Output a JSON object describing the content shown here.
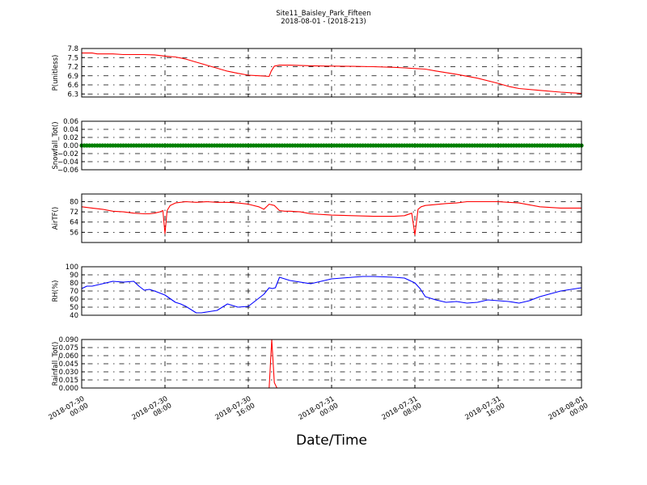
{
  "figure": {
    "title_line1": "Site11_Baisley_Park_Fifteen",
    "title_line2": "2018-08-01 - (2018-213)",
    "xlabel": "Date/Time"
  },
  "x_axis": {
    "range_hours": [
      0,
      48
    ],
    "ticks": [
      {
        "hour": 0,
        "line1": "2018-07-30",
        "line2": "00:00"
      },
      {
        "hour": 8,
        "line1": "2018-07-30",
        "line2": "08:00"
      },
      {
        "hour": 16,
        "line1": "2018-07-30",
        "line2": "16:00"
      },
      {
        "hour": 24,
        "line1": "2018-07-31",
        "line2": "00:00"
      },
      {
        "hour": 32,
        "line1": "2018-07-31",
        "line2": "08:00"
      },
      {
        "hour": 40,
        "line1": "2018-07-31",
        "line2": "16:00"
      },
      {
        "hour": 48,
        "line1": "2018-08-01",
        "line2": "00:00"
      }
    ]
  },
  "chart_data": [
    {
      "type": "line",
      "ylabel": "P(unitless)",
      "ylim": [
        6.2,
        7.8
      ],
      "yticks": [
        "6.3",
        "6.6",
        "6.9",
        "7.2",
        "7.5",
        "7.8"
      ],
      "ytick_values": [
        6.3,
        6.6,
        6.9,
        7.2,
        7.5,
        7.8
      ],
      "color": "#ff0000",
      "grid": true,
      "x": [
        0,
        1,
        1.5,
        2,
        3,
        4,
        5,
        6,
        7,
        8,
        9,
        10,
        11,
        12,
        13,
        14,
        15,
        16,
        17,
        18,
        18.2,
        18.5,
        19,
        20,
        22,
        24,
        26,
        28,
        30,
        31,
        32,
        33,
        34,
        36,
        38,
        40,
        41,
        42,
        44,
        46,
        47,
        48
      ],
      "y": [
        7.65,
        7.65,
        7.62,
        7.62,
        7.62,
        7.6,
        7.6,
        7.6,
        7.59,
        7.55,
        7.52,
        7.45,
        7.35,
        7.25,
        7.15,
        7.05,
        6.98,
        6.92,
        6.9,
        6.88,
        7.05,
        7.22,
        7.25,
        7.25,
        7.23,
        7.22,
        7.21,
        7.2,
        7.18,
        7.16,
        7.14,
        7.12,
        7.06,
        6.95,
        6.82,
        6.65,
        6.55,
        6.48,
        6.42,
        6.36,
        6.34,
        6.32
      ]
    },
    {
      "type": "scatter",
      "ylabel": "Snowfall_Tot()",
      "ylim": [
        -0.06,
        0.06
      ],
      "yticks": [
        "−0.06",
        "−0.04",
        "−0.02",
        "0.00",
        "0.02",
        "0.04",
        "0.06"
      ],
      "ytick_values": [
        -0.06,
        -0.04,
        -0.02,
        0,
        0.02,
        0.04,
        0.06
      ],
      "color": "#008000",
      "grid": true,
      "constant_value": 0.0,
      "x_range": [
        0,
        48
      ],
      "point_step_hours": 0.25
    },
    {
      "type": "line",
      "ylabel": "AirTF()",
      "ylim": [
        48,
        86
      ],
      "yticks": [
        "56",
        "64",
        "72",
        "80"
      ],
      "ytick_values": [
        56,
        64,
        72,
        80
      ],
      "color": "#ff0000",
      "grid": true,
      "x": [
        0,
        1,
        2,
        3,
        4,
        5,
        6,
        6.5,
        7,
        7.5,
        7.8,
        8.0,
        8.2,
        8.5,
        9,
        10,
        11,
        12,
        13,
        14,
        15,
        16,
        17,
        17.5,
        18,
        18.5,
        19,
        19.5,
        20,
        21,
        22,
        24,
        26,
        28,
        30,
        31,
        31.7,
        32.0,
        32.3,
        32.6,
        33,
        35,
        36,
        37,
        38,
        39,
        40,
        41,
        42,
        43,
        44,
        46,
        48
      ],
      "y": [
        76,
        75,
        74,
        72.5,
        72,
        71,
        70.5,
        70.5,
        71,
        72,
        73,
        55,
        73,
        77,
        79,
        80,
        79.5,
        80,
        79.5,
        79.5,
        79,
        78,
        76,
        74,
        78,
        77,
        73,
        72.5,
        72.5,
        72,
        70.5,
        69.5,
        69,
        68.5,
        68.5,
        69,
        71,
        54,
        74,
        76,
        77,
        78.5,
        79,
        80,
        80,
        80,
        80,
        79.5,
        79,
        77.5,
        76,
        75,
        75
      ]
    },
    {
      "type": "line",
      "ylabel": "RH(%)",
      "ylim": [
        40,
        100
      ],
      "yticks": [
        "40",
        "50",
        "60",
        "70",
        "80",
        "90",
        "100"
      ],
      "ytick_values": [
        40,
        50,
        60,
        70,
        80,
        90,
        100
      ],
      "color": "#0000ff",
      "grid": true,
      "x": [
        0,
        0.5,
        1,
        2,
        3,
        4,
        5,
        5.5,
        6,
        6.5,
        7,
        8,
        9,
        9.5,
        10,
        11,
        11.5,
        12,
        12.5,
        13,
        14,
        15,
        16,
        17,
        17.5,
        18,
        18.3,
        18.6,
        19,
        20,
        22,
        23,
        24,
        26,
        27,
        28,
        30,
        31,
        32,
        32.5,
        33,
        34,
        35,
        36,
        37,
        38,
        39,
        40,
        41,
        42,
        43,
        44,
        46,
        47,
        48
      ],
      "y": [
        73,
        76,
        76,
        79,
        82,
        81,
        82,
        76,
        71,
        72,
        70,
        65,
        56,
        54,
        51,
        43,
        43,
        44,
        45,
        46,
        54,
        50,
        51,
        61,
        66,
        74,
        73,
        74,
        87,
        83,
        79,
        82,
        85,
        87,
        88,
        88,
        87,
        86,
        80,
        73,
        63,
        59,
        56,
        57,
        55,
        56,
        59,
        58,
        57,
        55,
        58,
        63,
        70,
        72,
        74
      ]
    },
    {
      "type": "line",
      "ylabel": "Rainfall_Tot()",
      "ylim": [
        0,
        0.09
      ],
      "yticks": [
        "0.000",
        "0.015",
        "0.030",
        "0.045",
        "0.060",
        "0.075",
        "0.090"
      ],
      "ytick_values": [
        0,
        0.015,
        0.03,
        0.045,
        0.06,
        0.075,
        0.09
      ],
      "color": "#ff0000",
      "grid": true,
      "x": [
        0,
        18.0,
        18.25,
        18.5,
        18.75,
        48
      ],
      "y": [
        0,
        0,
        0.09,
        0.01,
        0,
        0
      ]
    }
  ]
}
